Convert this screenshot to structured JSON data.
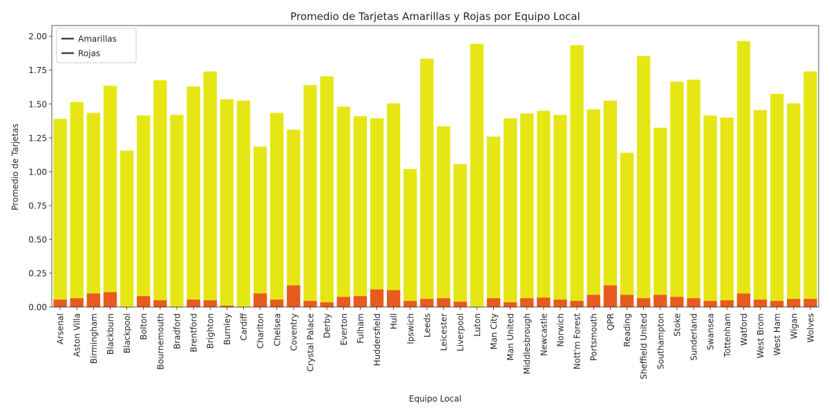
{
  "chart_data": {
    "type": "bar",
    "title": "Promedio de Tarjetas Amarillas y Rojas por Equipo Local",
    "xlabel": "Equipo Local",
    "ylabel": "Promedio de Tarjetas",
    "ylim": [
      0,
      2.08
    ],
    "yticks": [
      "0.00",
      "0.25",
      "0.50",
      "0.75",
      "1.00",
      "1.25",
      "1.50",
      "1.75",
      "2.00"
    ],
    "ytick_values": [
      0,
      0.25,
      0.5,
      0.75,
      1.0,
      1.25,
      1.5,
      1.75,
      2.0
    ],
    "grid": false,
    "legend_position": "top-left",
    "categories": [
      "Arsenal",
      "Aston Villa",
      "Birmingham",
      "Blackburn",
      "Blackpool",
      "Bolton",
      "Bournemouth",
      "Bradford",
      "Brentford",
      "Brighton",
      "Burnley",
      "Cardiff",
      "Charlton",
      "Chelsea",
      "Coventry",
      "Crystal Palace",
      "Derby",
      "Everton",
      "Fulham",
      "Huddersfield",
      "Hull",
      "Ipswich",
      "Leeds",
      "Leicester",
      "Liverpool",
      "Luton",
      "Man City",
      "Man United",
      "Middlesbrough",
      "Newcastle",
      "Norwich",
      "Nott'm Forest",
      "Portsmouth",
      "QPR",
      "Reading",
      "Sheffield United",
      "Southampton",
      "Stoke",
      "Sunderland",
      "Swansea",
      "Tottenham",
      "Watford",
      "West Brom",
      "West Ham",
      "Wigan",
      "Wolves"
    ],
    "series": [
      {
        "name": "Amarillas",
        "color": "#e6e614",
        "values": [
          1.39,
          1.515,
          1.435,
          1.635,
          1.155,
          1.415,
          1.675,
          1.42,
          1.63,
          1.74,
          1.535,
          1.525,
          1.185,
          1.435,
          1.31,
          1.64,
          1.705,
          1.48,
          1.41,
          1.395,
          1.505,
          1.02,
          1.835,
          1.335,
          1.055,
          1.945,
          1.26,
          1.395,
          1.43,
          1.45,
          1.42,
          1.935,
          1.46,
          1.525,
          1.14,
          1.855,
          1.325,
          1.665,
          1.68,
          1.415,
          1.4,
          1.965,
          1.455,
          1.575,
          1.505,
          1.74
        ]
      },
      {
        "name": "Rojas",
        "color": "#e85a1f",
        "values": [
          0.055,
          0.065,
          0.1,
          0.11,
          0.0,
          0.08,
          0.05,
          0.0,
          0.055,
          0.05,
          0.01,
          0.0,
          0.1,
          0.055,
          0.16,
          0.045,
          0.035,
          0.075,
          0.08,
          0.13,
          0.125,
          0.045,
          0.06,
          0.065,
          0.04,
          0.0,
          0.065,
          0.035,
          0.065,
          0.07,
          0.055,
          0.045,
          0.09,
          0.16,
          0.09,
          0.065,
          0.09,
          0.075,
          0.065,
          0.045,
          0.05,
          0.1,
          0.055,
          0.045,
          0.06,
          0.06
        ]
      }
    ],
    "legend_line_color": "#404040"
  }
}
